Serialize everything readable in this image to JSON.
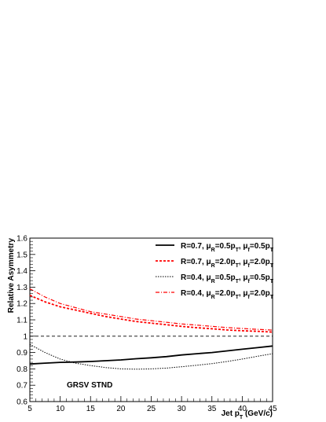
{
  "chart_data": {
    "type": "line",
    "title": "",
    "xlabel": "Jet p_T (GeV/c)",
    "ylabel": "Relative Asymmetry",
    "xlim": [
      5,
      45
    ],
    "ylim": [
      0.6,
      1.6
    ],
    "x_ticks": [
      5,
      10,
      15,
      20,
      25,
      30,
      35,
      40,
      45
    ],
    "x_tick_labels": [
      "5",
      "10",
      "15",
      "20",
      "25",
      "30",
      "35",
      "40",
      "45"
    ],
    "y_ticks": [
      0.6,
      0.7,
      0.8,
      0.9,
      1.0,
      1.1,
      1.2,
      1.3,
      1.4,
      1.5,
      1.6
    ],
    "y_tick_labels": [
      "0.6",
      "0.7",
      "0.8",
      "0.9",
      "1",
      "1.1",
      "1.2",
      "1.3",
      "1.4",
      "1.5",
      "1.6"
    ],
    "annotation": "GRSV STND",
    "reference_line": {
      "y": 1.0,
      "style": "dashed"
    },
    "grid": false,
    "legend_position": "top-right",
    "series": [
      {
        "name": "R=0.7, μR=0.5pT, μF=0.5pT",
        "legend": {
          "a": "R=0.7, μ",
          "b": "=0.5p",
          "c": ", μ",
          "d": "=0.5p",
          "s1": "R",
          "s2": "T",
          "s3": "f",
          "s4": "T"
        },
        "color": "#000000",
        "width": 1.8,
        "dash": "",
        "x": [
          5,
          7.5,
          10,
          12.5,
          15,
          17.5,
          20,
          22.5,
          25,
          27.5,
          30,
          32.5,
          35,
          37.5,
          40,
          42.5,
          45
        ],
        "y": [
          0.83,
          0.835,
          0.84,
          0.842,
          0.845,
          0.85,
          0.855,
          0.862,
          0.868,
          0.875,
          0.885,
          0.893,
          0.9,
          0.91,
          0.92,
          0.93,
          0.94
        ]
      },
      {
        "name": "R=0.7, μR=2.0pT, μF=2.0pT",
        "legend": {
          "a": "R=0.7, μ",
          "b": "=2.0p",
          "c": ", μ",
          "d": "=2.0p",
          "s1": "R",
          "s2": "T",
          "s3": "f",
          "s4": "T"
        },
        "color": "#ff0000",
        "width": 1.8,
        "dash": "3,2",
        "x": [
          5,
          7.5,
          10,
          12.5,
          15,
          17.5,
          20,
          22.5,
          25,
          27.5,
          30,
          32.5,
          35,
          37.5,
          40,
          42.5,
          45
        ],
        "y": [
          1.25,
          1.21,
          1.18,
          1.16,
          1.14,
          1.12,
          1.105,
          1.09,
          1.08,
          1.07,
          1.06,
          1.052,
          1.045,
          1.038,
          1.033,
          1.03,
          1.025
        ]
      },
      {
        "name": "R=0.4, μR=0.5pT, μF=0.5pT",
        "legend": {
          "a": "R=0.4, μ",
          "b": "=0.5p",
          "c": ", μ",
          "d": "=0.5p",
          "s1": "R",
          "s2": "T",
          "s3": "f",
          "s4": "T"
        },
        "color": "#000000",
        "width": 1,
        "dash": "1.5,1.5",
        "x": [
          5,
          7.5,
          10,
          12.5,
          15,
          17.5,
          20,
          22.5,
          25,
          27.5,
          30,
          32.5,
          35,
          37.5,
          40,
          42.5,
          45
        ],
        "y": [
          0.95,
          0.9,
          0.86,
          0.835,
          0.82,
          0.808,
          0.8,
          0.798,
          0.8,
          0.805,
          0.813,
          0.822,
          0.832,
          0.845,
          0.86,
          0.877,
          0.893
        ]
      },
      {
        "name": "R=0.4, μR=2.0pT, μF=2.0pT",
        "legend": {
          "a": "R=0.4, μ",
          "b": "=2.0p",
          "c": ", μ",
          "d": "=2.0p",
          "s1": "R",
          "s2": "T",
          "s3": "f",
          "s4": "T"
        },
        "color": "#ff0000",
        "width": 1.2,
        "dash": "5,2,1,2",
        "x": [
          5,
          7.5,
          10,
          12.5,
          15,
          17.5,
          20,
          22.5,
          25,
          27.5,
          30,
          32.5,
          35,
          37.5,
          40,
          42.5,
          45
        ],
        "y": [
          1.29,
          1.24,
          1.2,
          1.175,
          1.15,
          1.135,
          1.12,
          1.105,
          1.095,
          1.085,
          1.075,
          1.068,
          1.06,
          1.053,
          1.047,
          1.042,
          1.037
        ]
      }
    ]
  }
}
